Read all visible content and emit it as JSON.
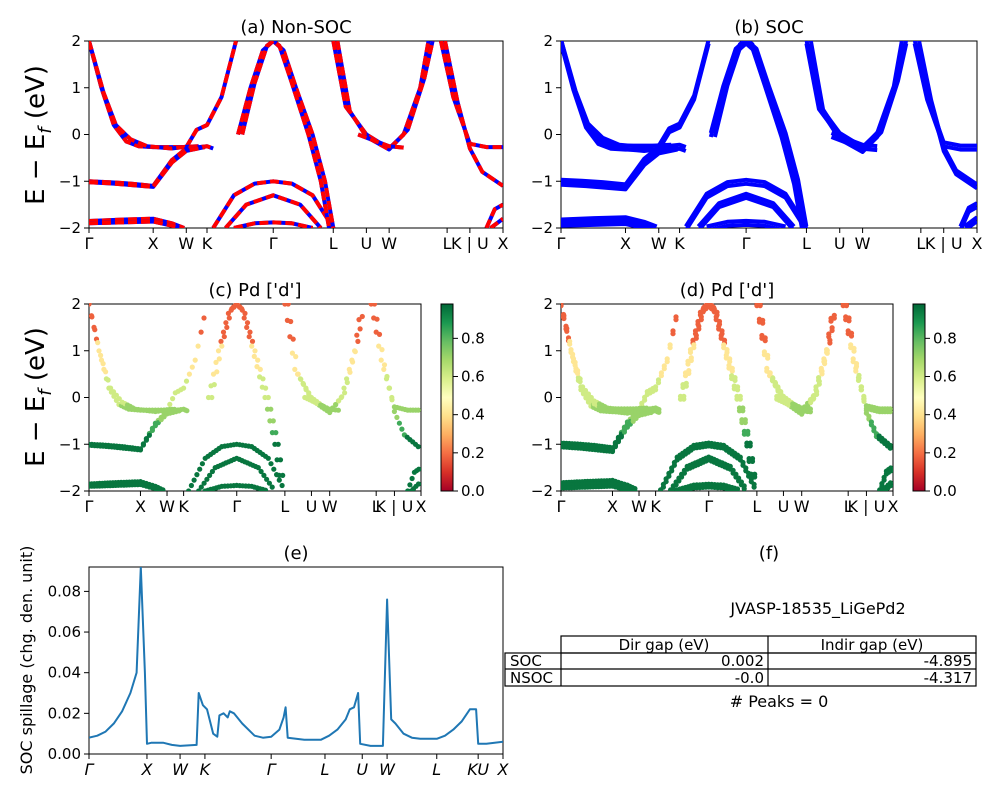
{
  "figure": {
    "ylabel_bands": "E − E_f (eV)",
    "k_ticks": [
      "Γ",
      "X",
      "W",
      "K",
      "Γ",
      "L",
      "U",
      "W",
      "L",
      "K | U",
      "X"
    ],
    "k_positions": [
      0,
      0.155,
      0.235,
      0.285,
      0.445,
      0.59,
      0.67,
      0.725,
      0.865,
      0.92,
      1.0
    ],
    "ylim": [
      -2,
      2
    ],
    "yticks": [
      -2,
      -1,
      0,
      1,
      2
    ]
  },
  "chart_data": [
    {
      "id": "a",
      "type": "line",
      "title": "(a) Non-SOC",
      "ylabel": "E − E_f (eV)",
      "ylim": [
        -2,
        2
      ],
      "series": [
        {
          "style": "solid",
          "color": "#0000ff",
          "bands": [
            [
              [
                0,
                2.0
              ],
              [
                0.03,
                1.0
              ],
              [
                0.06,
                0.2
              ],
              [
                0.09,
                -0.15
              ],
              [
                0.12,
                -0.25
              ],
              [
                0.155,
                -0.27
              ],
              [
                0.2,
                -0.27
              ],
              [
                0.235,
                -0.27
              ],
              [
                0.26,
                0.1
              ],
              [
                0.285,
                0.2
              ],
              [
                0.32,
                0.8
              ],
              [
                0.355,
                2.0
              ]
            ],
            [
              [
                0,
                2.0
              ],
              [
                0.035,
                0.9
              ],
              [
                0.065,
                0.2
              ],
              [
                0.1,
                -0.1
              ],
              [
                0.14,
                -0.25
              ],
              [
                0.2,
                -0.3
              ],
              [
                0.235,
                -0.26
              ],
              [
                0.265,
                -0.25
              ]
            ],
            [
              [
                0,
                -1.0
              ],
              [
                0.05,
                -1.02
              ],
              [
                0.1,
                -1.05
              ],
              [
                0.155,
                -1.1
              ],
              [
                0.2,
                -0.55
              ],
              [
                0.235,
                -0.3
              ],
              [
                0.285,
                -0.25
              ],
              [
                0.3,
                -0.3
              ]
            ],
            [
              [
                0,
                -1.02
              ],
              [
                0.06,
                -1.05
              ],
              [
                0.155,
                -1.12
              ],
              [
                0.2,
                -0.6
              ],
              [
                0.235,
                -0.35
              ],
              [
                0.28,
                -0.27
              ]
            ],
            [
              [
                0,
                -1.85
              ],
              [
                0.08,
                -1.82
              ],
              [
                0.155,
                -1.8
              ],
              [
                0.2,
                -1.9
              ],
              [
                0.23,
                -2.0
              ]
            ],
            [
              [
                0,
                -1.9
              ],
              [
                0.08,
                -1.88
              ],
              [
                0.155,
                -1.86
              ],
              [
                0.2,
                -1.95
              ],
              [
                0.22,
                -2.0
              ]
            ],
            [
              [
                0.3,
                -2.0
              ],
              [
                0.35,
                -1.3
              ],
              [
                0.4,
                -1.05
              ],
              [
                0.445,
                -1.0
              ],
              [
                0.49,
                -1.05
              ],
              [
                0.54,
                -1.3
              ],
              [
                0.59,
                -2.0
              ]
            ],
            [
              [
                0.33,
                -2.0
              ],
              [
                0.38,
                -1.5
              ],
              [
                0.445,
                -1.3
              ],
              [
                0.51,
                -1.5
              ],
              [
                0.56,
                -2.0
              ]
            ],
            [
              [
                0.35,
                -2.0
              ],
              [
                0.4,
                -1.9
              ],
              [
                0.445,
                -1.88
              ],
              [
                0.49,
                -1.9
              ],
              [
                0.54,
                -2.0
              ]
            ],
            [
              [
                0.36,
                0.0
              ],
              [
                0.39,
                1.0
              ],
              [
                0.42,
                1.8
              ],
              [
                0.445,
                2.0
              ],
              [
                0.47,
                1.8
              ],
              [
                0.5,
                1.0
              ],
              [
                0.54,
                0.0
              ],
              [
                0.57,
                -1.0
              ],
              [
                0.59,
                -2.0
              ]
            ],
            [
              [
                0.37,
                0.0
              ],
              [
                0.4,
                1.1
              ],
              [
                0.43,
                1.9
              ],
              [
                0.445,
                2.0
              ],
              [
                0.46,
                1.9
              ],
              [
                0.49,
                1.1
              ],
              [
                0.53,
                0.0
              ],
              [
                0.56,
                -1.0
              ],
              [
                0.58,
                -2.0
              ]
            ],
            [
              [
                0.59,
                2.0
              ],
              [
                0.62,
                0.6
              ],
              [
                0.67,
                0.0
              ],
              [
                0.725,
                -0.3
              ],
              [
                0.76,
                0.0
              ],
              [
                0.8,
                1.0
              ],
              [
                0.82,
                2.0
              ]
            ],
            [
              [
                0.6,
                2.0
              ],
              [
                0.63,
                0.5
              ],
              [
                0.67,
                -0.05
              ],
              [
                0.725,
                -0.32
              ],
              [
                0.77,
                0.1
              ],
              [
                0.81,
                1.2
              ],
              [
                0.83,
                2.0
              ]
            ],
            [
              [
                0.65,
                0.0
              ],
              [
                0.68,
                -0.1
              ],
              [
                0.725,
                -0.25
              ],
              [
                0.76,
                -0.28
              ]
            ],
            [
              [
                0.85,
                2.0
              ],
              [
                0.88,
                0.8
              ],
              [
                0.92,
                -0.2
              ],
              [
                0.96,
                -0.27
              ],
              [
                1.0,
                -0.27
              ]
            ],
            [
              [
                0.86,
                2.0
              ],
              [
                0.89,
                0.7
              ],
              [
                0.92,
                -0.3
              ],
              [
                0.95,
                -0.8
              ],
              [
                1.0,
                -1.1
              ]
            ],
            [
              [
                0.96,
                -2.0
              ],
              [
                0.98,
                -1.6
              ],
              [
                1.0,
                -1.5
              ]
            ],
            [
              [
                0.97,
                -2.0
              ],
              [
                1.0,
                -1.8
              ]
            ]
          ]
        },
        {
          "style": "dashed",
          "color": "#ff0000",
          "bands": "overlay"
        }
      ]
    },
    {
      "id": "b",
      "type": "line",
      "title": "(b) SOC",
      "ylim": [
        -2,
        2
      ],
      "series": [
        {
          "style": "solid",
          "color": "#0000ff",
          "bands": "same-as-a-split"
        }
      ]
    },
    {
      "id": "c",
      "type": "scatter",
      "title": "(c)  Pd ['d']",
      "ylabel": "E − E_f (eV)",
      "ylim": [
        -2,
        2
      ],
      "colorbar": {
        "ticks": [
          0.0,
          0.2,
          0.4,
          0.6,
          0.8
        ],
        "range": [
          0,
          0.98
        ],
        "cmap": "RdYlGn"
      }
    },
    {
      "id": "d",
      "type": "scatter",
      "title": "(d) Pd ['d']",
      "ylim": [
        -2,
        2
      ],
      "colorbar": {
        "ticks": [
          0.0,
          0.2,
          0.4,
          0.6,
          0.8
        ],
        "range": [
          0,
          0.98
        ],
        "cmap": "RdYlGn"
      }
    },
    {
      "id": "e",
      "type": "line",
      "title": "(e)",
      "ylabel": "SOC spillage (chg. den. unit)",
      "ylim": [
        0,
        0.092
      ],
      "yticks": [
        0.0,
        0.02,
        0.04,
        0.06,
        0.08
      ],
      "xticks": [
        "Γ",
        "X",
        "W",
        "K",
        "Γ",
        "L",
        "U",
        "W",
        "L",
        "KU",
        "X"
      ],
      "xtick_positions": [
        0,
        0.14,
        0.22,
        0.28,
        0.44,
        0.57,
        0.66,
        0.72,
        0.84,
        0.94,
        1.0
      ],
      "series": [
        {
          "color": "#1f77b4",
          "points": [
            [
              0,
              0.008
            ],
            [
              0.02,
              0.009
            ],
            [
              0.04,
              0.011
            ],
            [
              0.06,
              0.015
            ],
            [
              0.08,
              0.021
            ],
            [
              0.1,
              0.03
            ],
            [
              0.115,
              0.04
            ],
            [
              0.125,
              0.092
            ],
            [
              0.135,
              0.04
            ],
            [
              0.14,
              0.005
            ],
            [
              0.15,
              0.0055
            ],
            [
              0.18,
              0.0055
            ],
            [
              0.2,
              0.0045
            ],
            [
              0.22,
              0.004
            ],
            [
              0.26,
              0.0045
            ],
            [
              0.265,
              0.03
            ],
            [
              0.275,
              0.024
            ],
            [
              0.285,
              0.022
            ],
            [
              0.3,
              0.01
            ],
            [
              0.31,
              0.0085
            ],
            [
              0.315,
              0.019
            ],
            [
              0.325,
              0.02
            ],
            [
              0.335,
              0.018
            ],
            [
              0.34,
              0.021
            ],
            [
              0.35,
              0.02
            ],
            [
              0.37,
              0.015
            ],
            [
              0.4,
              0.009
            ],
            [
              0.42,
              0.008
            ],
            [
              0.44,
              0.0085
            ],
            [
              0.46,
              0.012
            ],
            [
              0.47,
              0.018
            ],
            [
              0.475,
              0.023
            ],
            [
              0.48,
              0.008
            ],
            [
              0.52,
              0.007
            ],
            [
              0.56,
              0.007
            ],
            [
              0.58,
              0.009
            ],
            [
              0.6,
              0.012
            ],
            [
              0.62,
              0.017
            ],
            [
              0.63,
              0.022
            ],
            [
              0.64,
              0.023
            ],
            [
              0.65,
              0.03
            ],
            [
              0.655,
              0.005
            ],
            [
              0.68,
              0.004
            ],
            [
              0.7,
              0.004
            ],
            [
              0.71,
              0.004
            ],
            [
              0.72,
              0.076
            ],
            [
              0.73,
              0.017
            ],
            [
              0.74,
              0.015
            ],
            [
              0.76,
              0.01
            ],
            [
              0.78,
              0.008
            ],
            [
              0.8,
              0.0075
            ],
            [
              0.84,
              0.0075
            ],
            [
              0.86,
              0.009
            ],
            [
              0.88,
              0.012
            ],
            [
              0.9,
              0.016
            ],
            [
              0.92,
              0.022
            ],
            [
              0.935,
              0.022
            ],
            [
              0.94,
              0.005
            ],
            [
              0.96,
              0.005
            ],
            [
              1.0,
              0.006
            ]
          ]
        }
      ]
    },
    {
      "id": "f",
      "type": "table",
      "title": "(f)",
      "subtitle": "JVASP-18535_LiGePd2",
      "columns": [
        "Dir gap (eV)",
        "Indir gap (eV)"
      ],
      "rows": [
        {
          "label": "SOC",
          "values": [
            "0.002",
            "-4.895"
          ]
        },
        {
          "label": "NSOC",
          "values": [
            "-0.0",
            "-4.317"
          ]
        }
      ],
      "footer": "# Peaks = 0"
    }
  ]
}
